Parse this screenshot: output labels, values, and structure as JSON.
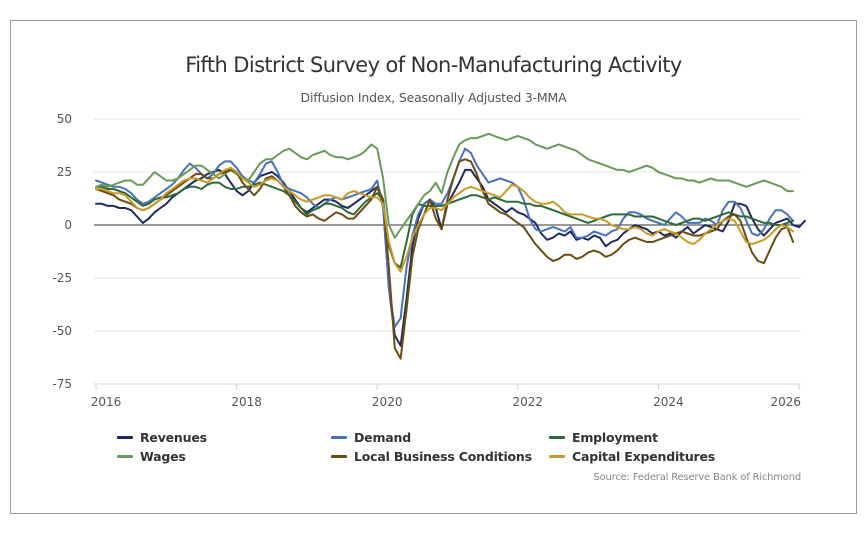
{
  "chart_data": {
    "type": "line",
    "title": "Fifth District Survey of Non-Manufacturing Activity",
    "subtitle": "Diffusion Index, Seasonally Adjusted 3-MMA",
    "xlabel": "",
    "ylabel": "",
    "ylim": [
      -75,
      50
    ],
    "yticks": [
      50,
      25,
      0,
      -25,
      -50,
      -75
    ],
    "ytick_labels": [
      "50",
      "25",
      "0",
      "-25",
      "-50",
      "-75"
    ],
    "xlim": [
      2016.0,
      2026.0
    ],
    "xticks": [
      2016,
      2018,
      2020,
      2022,
      2024,
      2026
    ],
    "xtick_labels": [
      "2016",
      "2018",
      "2020",
      "2022",
      "2024",
      "2026"
    ],
    "x_start": 2016.0,
    "x_step_months": 1,
    "grid": true,
    "legend_position": "bottom",
    "source": "Source: Federal Reserve Bank of Richmond",
    "series": [
      {
        "name": "Revenues",
        "color": "#1f2a5e",
        "values": [
          10,
          10,
          9,
          9,
          8,
          8,
          7,
          4,
          1,
          3,
          6,
          8,
          10,
          13,
          15,
          17,
          19,
          21,
          22,
          24,
          25,
          26,
          24,
          20,
          16,
          14,
          16,
          20,
          23,
          24,
          25,
          23,
          20,
          16,
          12,
          8,
          6,
          8,
          10,
          12,
          12,
          11,
          9,
          8,
          10,
          12,
          14,
          16,
          18,
          10,
          -30,
          -52,
          -57,
          -35,
          -10,
          3,
          10,
          12,
          8,
          -2,
          10,
          15,
          20,
          26,
          26,
          22,
          18,
          12,
          10,
          8,
          6,
          8,
          6,
          5,
          3,
          1,
          -4,
          -7,
          -6,
          -4,
          -5,
          -3,
          -7,
          -6,
          -7,
          -5,
          -6,
          -10,
          -8,
          -7,
          -4,
          -2,
          0,
          -1,
          -2,
          -4,
          -3,
          -5,
          -4,
          -6,
          -3,
          -1,
          -4,
          -2,
          0,
          -1,
          -2,
          -3,
          2,
          10,
          10,
          9,
          3,
          -2,
          -5,
          -2,
          1,
          2,
          3,
          0,
          -1,
          2
        ]
      },
      {
        "name": "Demand",
        "color": "#4a72b8",
        "values": [
          21,
          20,
          19,
          18,
          18,
          17,
          15,
          12,
          10,
          11,
          13,
          15,
          17,
          19,
          22,
          26,
          29,
          27,
          24,
          22,
          24,
          28,
          30,
          30,
          27,
          23,
          21,
          20,
          24,
          29,
          30,
          25,
          19,
          17,
          16,
          15,
          13,
          10,
          8,
          10,
          12,
          13,
          12,
          13,
          14,
          15,
          16,
          17,
          21,
          8,
          -30,
          -48,
          -44,
          -20,
          -5,
          5,
          10,
          12,
          10,
          10,
          15,
          22,
          30,
          36,
          34,
          28,
          24,
          20,
          21,
          22,
          21,
          20,
          18,
          12,
          3,
          -2,
          -3,
          -2,
          -1,
          -2,
          -3,
          -1,
          -6,
          -6,
          -5,
          -3,
          -4,
          -5,
          -3,
          -2,
          3,
          6,
          6,
          5,
          3,
          2,
          1,
          0,
          3,
          6,
          4,
          1,
          1,
          1,
          3,
          2,
          0,
          7,
          11,
          11,
          8,
          2,
          -4,
          -5,
          -2,
          3,
          7,
          7,
          5,
          2
        ]
      },
      {
        "name": "Employment",
        "color": "#2e6b3a",
        "values": [
          18,
          18,
          17,
          17,
          16,
          15,
          13,
          11,
          9,
          10,
          12,
          13,
          13,
          14,
          15,
          17,
          18,
          18,
          17,
          19,
          20,
          20,
          18,
          17,
          17,
          18,
          18,
          19,
          20,
          19,
          18,
          17,
          16,
          14,
          11,
          8,
          5,
          7,
          8,
          10,
          10,
          9,
          8,
          6,
          5,
          8,
          11,
          13,
          15,
          12,
          -10,
          -18,
          -20,
          -8,
          5,
          10,
          9,
          9,
          9,
          9,
          10,
          11,
          12,
          13,
          14,
          14,
          13,
          12,
          13,
          12,
          11,
          11,
          11,
          10,
          10,
          9,
          9,
          8,
          7,
          6,
          5,
          4,
          3,
          2,
          1,
          2,
          3,
          4,
          5,
          5,
          5,
          5,
          4,
          4,
          4,
          4,
          3,
          2,
          1,
          0,
          1,
          2,
          3,
          3,
          2,
          3,
          4,
          5,
          6,
          5,
          4,
          4,
          3,
          2,
          1,
          1,
          0,
          0,
          1,
          2
        ]
      },
      {
        "name": "Wages",
        "color": "#6a9a5a",
        "values": [
          18,
          19,
          18,
          19,
          20,
          21,
          21,
          19,
          19,
          22,
          25,
          23,
          21,
          21,
          22,
          24,
          26,
          28,
          28,
          26,
          24,
          22,
          24,
          26,
          24,
          22,
          21,
          25,
          29,
          31,
          31,
          33,
          35,
          36,
          34,
          32,
          31,
          33,
          34,
          35,
          33,
          32,
          32,
          31,
          32,
          33,
          35,
          38,
          36,
          22,
          0,
          -6,
          -2,
          2,
          6,
          10,
          14,
          16,
          20,
          15,
          25,
          32,
          38,
          40,
          41,
          41,
          42,
          43,
          42,
          41,
          40,
          41,
          42,
          41,
          40,
          38,
          37,
          36,
          37,
          38,
          37,
          36,
          35,
          33,
          31,
          30,
          29,
          28,
          27,
          26,
          26,
          25,
          26,
          27,
          28,
          27,
          25,
          24,
          23,
          22,
          22,
          21,
          21,
          20,
          21,
          22,
          21,
          21,
          21,
          20,
          19,
          18,
          19,
          20,
          21,
          20,
          19,
          18,
          16,
          16
        ]
      },
      {
        "name": "Local Business Conditions",
        "color": "#6b4c12",
        "values": [
          17,
          16,
          15,
          14,
          12,
          11,
          10,
          8,
          7,
          8,
          10,
          12,
          14,
          16,
          18,
          20,
          22,
          24,
          24,
          22,
          22,
          24,
          25,
          26,
          25,
          20,
          17,
          14,
          17,
          22,
          23,
          21,
          18,
          14,
          9,
          6,
          4,
          5,
          3,
          2,
          4,
          6,
          5,
          3,
          3,
          6,
          9,
          12,
          18,
          12,
          -20,
          -58,
          -63,
          -40,
          -15,
          -2,
          5,
          12,
          3,
          -2,
          12,
          22,
          30,
          31,
          30,
          24,
          16,
          10,
          8,
          6,
          5,
          3,
          1,
          -1,
          -5,
          -9,
          -12,
          -15,
          -17,
          -16,
          -14,
          -14,
          -16,
          -15,
          -13,
          -12,
          -13,
          -15,
          -14,
          -12,
          -9,
          -7,
          -6,
          -7,
          -8,
          -8,
          -7,
          -6,
          -5,
          -4,
          -3,
          -4,
          -5,
          -5,
          -4,
          -3,
          -2,
          2,
          4,
          5,
          2,
          -6,
          -13,
          -17,
          -18,
          -12,
          -6,
          -2,
          -1,
          -8
        ]
      },
      {
        "name": "Capital Expenditures",
        "color": "#c89a2a",
        "values": [
          17,
          17,
          16,
          15,
          15,
          14,
          11,
          8,
          7,
          8,
          10,
          12,
          15,
          17,
          19,
          21,
          22,
          22,
          21,
          20,
          22,
          24,
          26,
          27,
          25,
          22,
          20,
          18,
          19,
          21,
          22,
          21,
          18,
          16,
          14,
          12,
          11,
          12,
          13,
          14,
          14,
          13,
          12,
          15,
          16,
          15,
          14,
          13,
          13,
          10,
          -8,
          -18,
          -22,
          -15,
          -6,
          0,
          5,
          8,
          8,
          7,
          10,
          13,
          15,
          17,
          18,
          17,
          16,
          15,
          14,
          13,
          16,
          19,
          18,
          16,
          13,
          11,
          10,
          10,
          11,
          9,
          6,
          5,
          5,
          5,
          4,
          3,
          3,
          2,
          0,
          -1,
          -2,
          -2,
          -1,
          -2,
          -4,
          -5,
          -3,
          -2,
          -3,
          -4,
          -6,
          -8,
          -9,
          -7,
          -4,
          -2,
          0,
          2,
          3,
          2,
          -3,
          -8,
          -9,
          -8,
          -7,
          -5,
          -2,
          0,
          -1,
          -3
        ]
      }
    ]
  }
}
